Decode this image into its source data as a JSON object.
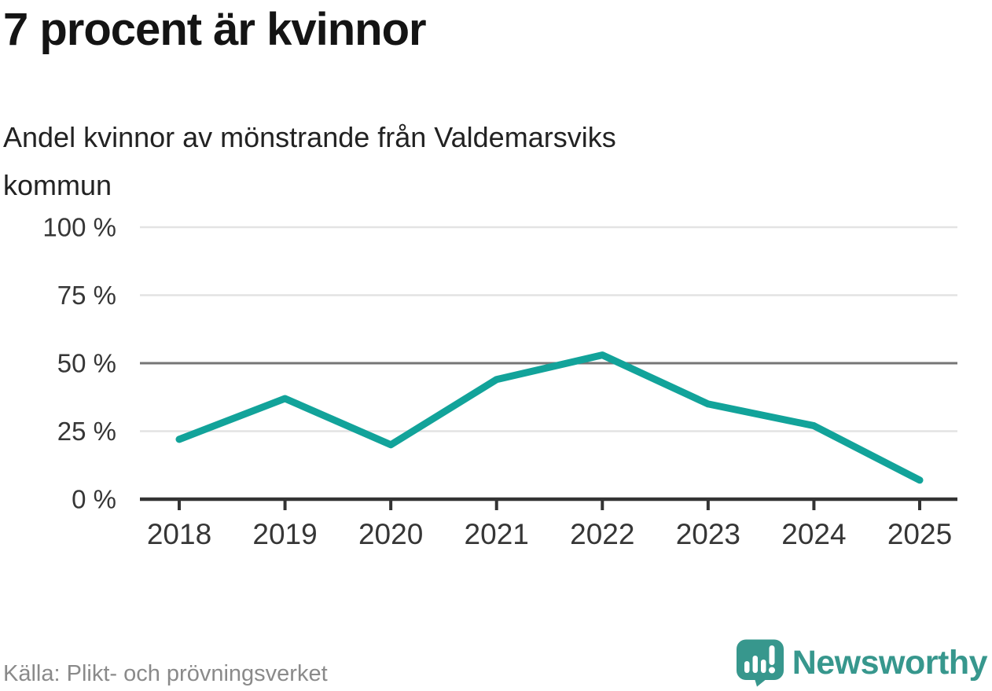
{
  "header": {
    "title": "7 procent är kvinnor",
    "subtitle_lines": [
      "Andel kvinnor av mönstrande från Valdemarsviks",
      "kommun"
    ]
  },
  "chart_data": {
    "type": "line",
    "title": "7 procent är kvinnor",
    "subtitle": "Andel kvinnor av mönstrande från Valdemarsviks kommun",
    "categories": [
      "2018",
      "2019",
      "2020",
      "2021",
      "2022",
      "2023",
      "2024",
      "2025"
    ],
    "values": [
      22,
      37,
      20,
      44,
      53,
      35,
      27,
      7
    ],
    "unit": "%",
    "xlabel": "",
    "ylabel": "",
    "ylim": [
      0,
      100
    ],
    "yticks": [
      {
        "value": 0,
        "label": "0 %"
      },
      {
        "value": 25,
        "label": "25 %"
      },
      {
        "value": 50,
        "label": "50 %"
      },
      {
        "value": 75,
        "label": "75 %"
      },
      {
        "value": 100,
        "label": "100 %"
      }
    ],
    "emphasized_gridline": 50,
    "grid": true,
    "legend": "none",
    "colors": {
      "line": "#12a39a",
      "gridline": "#e3e3e3",
      "gridline_emphasized": "#757575",
      "axis": "#333333",
      "tick_label": "#363636"
    }
  },
  "footer": {
    "source": "Källa: Plikt- och prövningsverket",
    "brand": "Newsworthy",
    "brand_color": "#37978d"
  },
  "icons": {
    "logo": "newsworthy-speech-bubble-barchart-icon"
  }
}
